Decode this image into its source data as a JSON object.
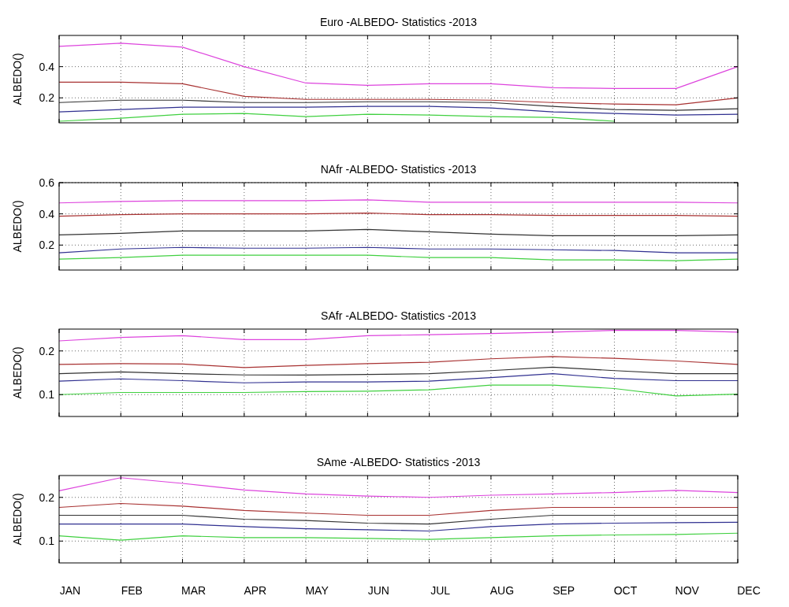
{
  "chart_data": [
    {
      "type": "line",
      "title": "Euro -ALBEDO- Statistics -2013",
      "ylabel": "ALBEDO()",
      "categories": [
        null,
        null,
        null,
        null,
        null,
        null,
        null,
        null,
        null,
        null,
        null,
        null
      ],
      "ylim": [
        0.04,
        0.6
      ],
      "yticks": [
        0.2,
        0.4
      ],
      "grid": true,
      "series": [
        {
          "color": "#dd44dd",
          "values": [
            0.53,
            0.55,
            0.525,
            0.4,
            0.295,
            0.28,
            0.29,
            0.29,
            0.265,
            0.26,
            0.26,
            0.4
          ]
        },
        {
          "color": "#a83232",
          "values": [
            0.3,
            0.3,
            0.29,
            0.21,
            0.19,
            0.19,
            0.19,
            0.185,
            0.17,
            0.16,
            0.155,
            0.2
          ]
        },
        {
          "color": "#333333",
          "values": [
            0.17,
            0.185,
            0.185,
            0.17,
            0.17,
            0.175,
            0.175,
            0.17,
            0.145,
            0.125,
            0.12,
            0.13
          ]
        },
        {
          "color": "#303090",
          "values": [
            0.11,
            0.125,
            0.14,
            0.14,
            0.14,
            0.145,
            0.145,
            0.135,
            0.11,
            0.1,
            0.09,
            0.095
          ]
        },
        {
          "color": "#40d040",
          "values": [
            0.05,
            0.07,
            0.095,
            0.1,
            0.08,
            0.095,
            0.09,
            0.08,
            0.075,
            0.05,
            null,
            null
          ]
        }
      ]
    },
    {
      "type": "line",
      "title": "NAfr -ALBEDO- Statistics -2013",
      "ylabel": "ALBEDO()",
      "categories": [
        null,
        null,
        null,
        null,
        null,
        null,
        null,
        null,
        null,
        null,
        null,
        null
      ],
      "ylim": [
        0.04,
        0.6
      ],
      "yticks": [
        0.2,
        0.4,
        0.6
      ],
      "grid": true,
      "series": [
        {
          "color": "#dd44dd",
          "values": [
            0.47,
            0.48,
            0.485,
            0.485,
            0.485,
            0.49,
            0.475,
            0.475,
            0.475,
            0.475,
            0.475,
            0.47
          ]
        },
        {
          "color": "#a83232",
          "values": [
            0.385,
            0.395,
            0.4,
            0.4,
            0.4,
            0.405,
            0.395,
            0.395,
            0.39,
            0.39,
            0.39,
            0.385
          ]
        },
        {
          "color": "#333333",
          "values": [
            0.265,
            0.275,
            0.29,
            0.29,
            0.29,
            0.3,
            0.285,
            0.27,
            0.26,
            0.26,
            0.26,
            0.265
          ]
        },
        {
          "color": "#303090",
          "values": [
            0.15,
            0.175,
            0.185,
            0.18,
            0.18,
            0.185,
            0.175,
            0.175,
            0.17,
            0.165,
            0.15,
            0.15
          ]
        },
        {
          "color": "#40d040",
          "values": [
            0.11,
            0.12,
            0.135,
            0.135,
            0.135,
            0.135,
            0.12,
            0.12,
            0.105,
            0.105,
            0.1,
            0.11
          ]
        }
      ]
    },
    {
      "type": "line",
      "title": "SAfr -ALBEDO- Statistics -2013",
      "ylabel": "ALBEDO()",
      "categories": [
        null,
        null,
        null,
        null,
        null,
        null,
        null,
        null,
        null,
        null,
        null,
        null
      ],
      "ylim": [
        0.05,
        0.25
      ],
      "yticks": [
        0.1,
        0.2
      ],
      "grid": true,
      "series": [
        {
          "color": "#dd44dd",
          "values": [
            0.223,
            0.231,
            0.235,
            0.226,
            0.226,
            0.235,
            0.237,
            0.24,
            0.243,
            0.247,
            0.247,
            0.243
          ]
        },
        {
          "color": "#a83232",
          "values": [
            0.169,
            0.171,
            0.17,
            0.162,
            0.167,
            0.171,
            0.174,
            0.182,
            0.187,
            0.183,
            0.177,
            0.169
          ]
        },
        {
          "color": "#333333",
          "values": [
            0.148,
            0.152,
            0.148,
            0.145,
            0.145,
            0.146,
            0.148,
            0.155,
            0.163,
            0.155,
            0.148,
            0.148
          ]
        },
        {
          "color": "#303090",
          "values": [
            0.131,
            0.136,
            0.132,
            0.127,
            0.129,
            0.129,
            0.131,
            0.139,
            0.148,
            0.137,
            0.132,
            0.132
          ]
        },
        {
          "color": "#40d040",
          "values": [
            0.1,
            0.105,
            0.105,
            0.105,
            0.107,
            0.108,
            0.111,
            0.122,
            0.122,
            0.114,
            0.097,
            0.101
          ]
        }
      ]
    },
    {
      "type": "line",
      "title": "SAme -ALBEDO- Statistics -2013",
      "ylabel": "ALBEDO()",
      "categories": [
        "JAN",
        "FEB",
        "MAR",
        "APR",
        "MAY",
        "JUN",
        "JUL",
        "AUG",
        "SEP",
        "OCT",
        "NOV",
        "DEC"
      ],
      "ylim": [
        0.05,
        0.25
      ],
      "yticks": [
        0.1,
        0.2
      ],
      "grid": true,
      "series": [
        {
          "color": "#dd44dd",
          "values": [
            0.215,
            0.245,
            0.232,
            0.217,
            0.208,
            0.203,
            0.2,
            0.205,
            0.208,
            0.211,
            0.216,
            0.211
          ]
        },
        {
          "color": "#a83232",
          "values": [
            0.177,
            0.186,
            0.18,
            0.17,
            0.164,
            0.159,
            0.159,
            0.17,
            0.177,
            0.177,
            0.177,
            0.177
          ]
        },
        {
          "color": "#333333",
          "values": [
            0.159,
            0.159,
            0.159,
            0.15,
            0.147,
            0.141,
            0.139,
            0.15,
            0.159,
            0.159,
            0.159,
            0.159
          ]
        },
        {
          "color": "#303090",
          "values": [
            0.139,
            0.139,
            0.139,
            0.133,
            0.128,
            0.126,
            0.123,
            0.133,
            0.139,
            0.141,
            0.142,
            0.143
          ]
        },
        {
          "color": "#40d040",
          "values": [
            0.112,
            0.102,
            0.112,
            0.108,
            0.108,
            0.106,
            0.104,
            0.108,
            0.112,
            0.114,
            0.115,
            0.118
          ]
        }
      ]
    }
  ]
}
